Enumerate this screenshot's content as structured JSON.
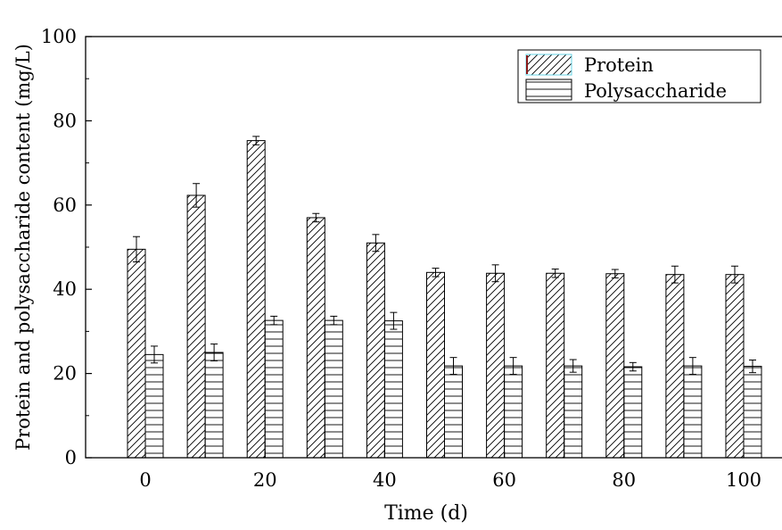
{
  "chart_data": {
    "type": "bar",
    "title": "",
    "xlabel": "Time (d)",
    "ylabel": "Protein and polysaccharide content (mg/L)",
    "ylim": [
      0,
      100
    ],
    "yticks": [
      "0",
      "20",
      "40",
      "60",
      "80",
      "100"
    ],
    "xticks": [
      "0",
      "20",
      "40",
      "60",
      "80",
      "100"
    ],
    "categories": [
      "0",
      "10",
      "20",
      "30",
      "40",
      "50",
      "60",
      "70",
      "80",
      "90",
      "100"
    ],
    "legend_position": "top-right",
    "grid": false,
    "series": [
      {
        "name": "Protein",
        "pattern": "diagonal-hatch",
        "values": [
          49.5,
          62.3,
          75.3,
          57.0,
          51.0,
          44.0,
          43.8,
          43.8,
          43.7,
          43.5,
          43.5
        ],
        "errors": [
          3.0,
          2.8,
          1.0,
          1.0,
          2.0,
          1.0,
          2.0,
          1.0,
          1.0,
          2.0,
          2.0
        ]
      },
      {
        "name": "Polysaccharide",
        "pattern": "horizontal-hatch",
        "values": [
          24.5,
          25.0,
          32.6,
          32.6,
          32.5,
          21.8,
          21.8,
          21.8,
          21.6,
          21.8,
          21.7
        ],
        "errors": [
          2.0,
          2.0,
          1.0,
          1.0,
          2.0,
          2.0,
          2.0,
          1.5,
          1.0,
          2.0,
          1.5
        ]
      }
    ]
  }
}
